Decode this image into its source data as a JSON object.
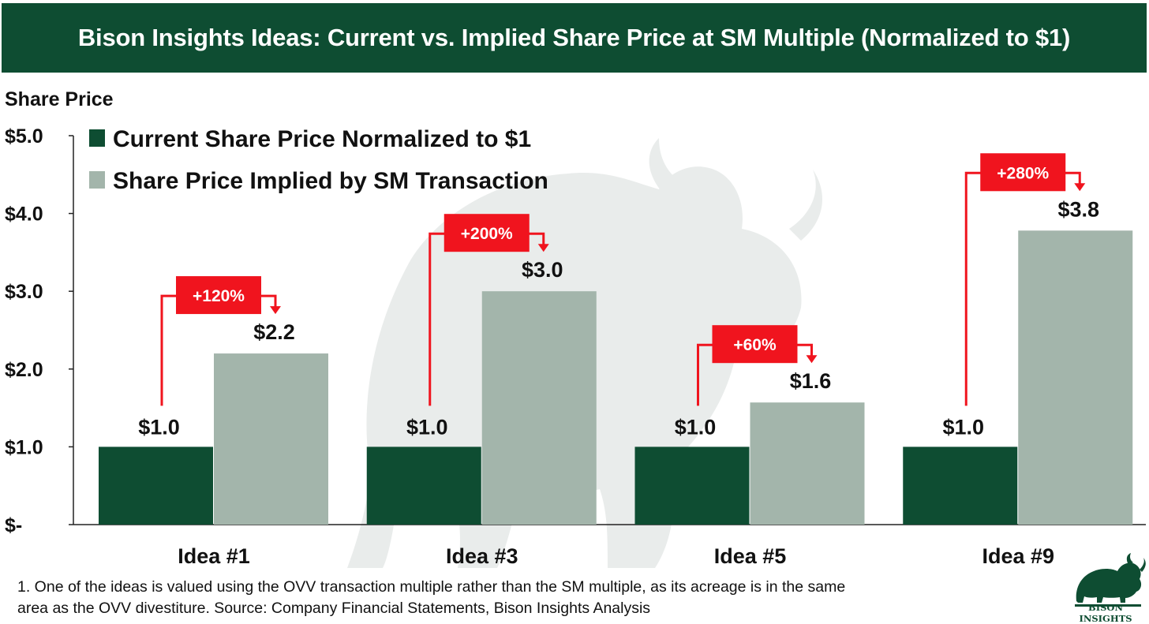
{
  "header": {
    "title": "Bison Insights Ideas: Current vs. Implied Share Price at SM Multiple (Normalized to $1)"
  },
  "chart_data": {
    "type": "bar",
    "title": "Bison Insights Ideas: Current vs. Implied Share Price at SM Multiple (Normalized to $1)",
    "ylabel": "Share Price",
    "xlabel": "",
    "ylim": [
      0,
      5
    ],
    "yticks": [
      0,
      1,
      2,
      3,
      4,
      5
    ],
    "ytick_labels": [
      "$-",
      "$1.0",
      "$2.0",
      "$3.0",
      "$4.0",
      "$5.0"
    ],
    "categories": [
      "Idea #1",
      "Idea #3",
      "Idea #5",
      "Idea #9"
    ],
    "series": [
      {
        "name": "Current Share Price Normalized to $1",
        "color": "#0e4d32",
        "values": [
          1.0,
          1.0,
          1.0,
          1.0
        ],
        "labels": [
          "$1.0",
          "$1.0",
          "$1.0",
          "$1.0"
        ]
      },
      {
        "name": "Share Price Implied by SM Transaction",
        "color": "#a3b5ab",
        "values": [
          2.2,
          3.0,
          1.57,
          3.78
        ],
        "labels": [
          "$2.2",
          "$3.0",
          "$1.6",
          "$3.8"
        ]
      }
    ],
    "annotations": [
      "+120%",
      "+200%",
      "+60%",
      "+280%"
    ],
    "annotation_color": "#f0141e",
    "legend_position": "top-left"
  },
  "footnote": {
    "line1": "1. One of the ideas is valued using the OVV transaction multiple rather than the SM multiple, as its acreage is in the same",
    "line2": "area as the OVV divestiture. Source: Company Financial Statements, Bison Insights Analysis"
  },
  "logo": {
    "text": "BISON INSIGHTS",
    "color": "#0e4d32"
  }
}
